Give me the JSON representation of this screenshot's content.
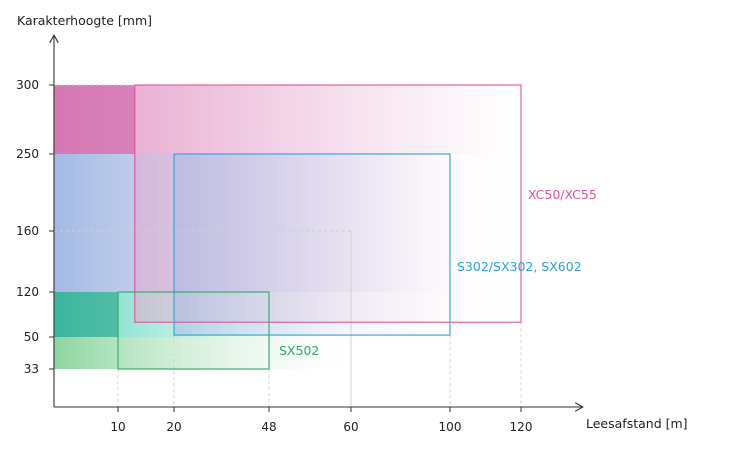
{
  "chart_data": {
    "type": "area",
    "title": "",
    "xlabel": "Leesafstand [m]",
    "ylabel": "Karakterhoogte [mm]",
    "x_ticks": [
      "10",
      "20",
      "48",
      "60",
      "100",
      "120"
    ],
    "y_ticks": [
      "33",
      "50",
      "120",
      "160",
      "250",
      "300"
    ],
    "series": [
      {
        "name": "XC50/XC55",
        "color": "#e0529c",
        "x_range": [
          13,
          120
        ],
        "y_range": [
          73,
          300
        ],
        "solid_y_range": [
          250,
          300
        ],
        "solid_x_range": [
          0,
          13
        ]
      },
      {
        "name": "S302/SX302, SX602",
        "color": "#2aa3cf",
        "x_range": [
          20,
          100
        ],
        "y_range": [
          53,
          250
        ],
        "solid_y_range": [
          120,
          250
        ],
        "solid_x_range": [
          0,
          20
        ]
      },
      {
        "name": "SX502",
        "color": "#2fa866",
        "x_range": [
          10,
          48
        ],
        "y_range": [
          33,
          120
        ],
        "solid_y_range": [
          33,
          120
        ],
        "solid_x_range": [
          0,
          10
        ]
      }
    ],
    "guide_box": {
      "x": 60,
      "y": 160
    },
    "grid": false
  }
}
